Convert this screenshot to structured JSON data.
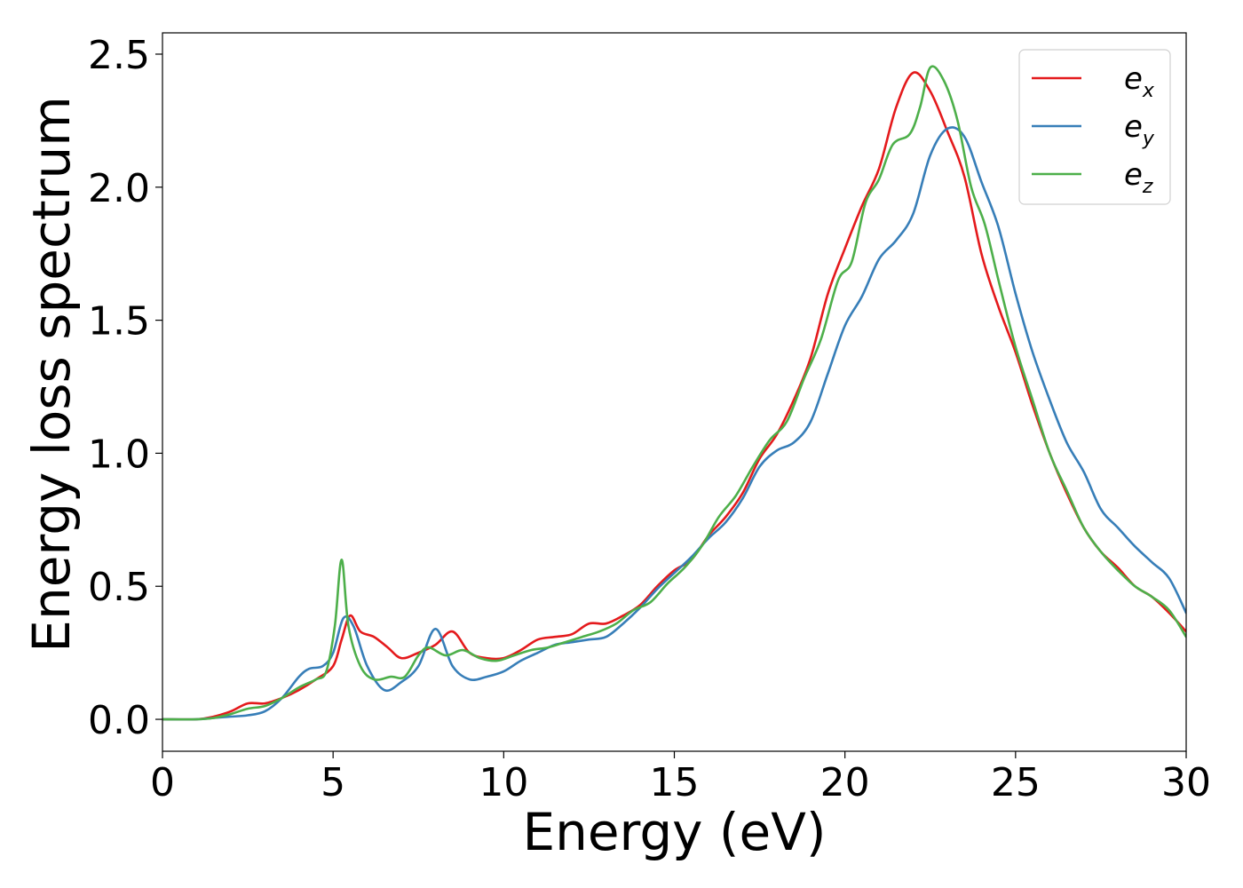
{
  "chart_data": {
    "type": "line",
    "title": "",
    "xlabel": "Energy (eV)",
    "ylabel": "Energy loss spectrum",
    "xlim": [
      0,
      30
    ],
    "ylim": [
      -0.12,
      2.58
    ],
    "xticks": [
      0,
      5,
      10,
      15,
      20,
      25,
      30
    ],
    "xtick_labels": [
      "0",
      "5",
      "10",
      "15",
      "20",
      "25",
      "30"
    ],
    "yticks": [
      0.0,
      0.5,
      1.0,
      1.5,
      2.0,
      2.5
    ],
    "ytick_labels": [
      "0.0",
      "0.5",
      "1.0",
      "1.5",
      "2.0",
      "2.5"
    ],
    "grid": false,
    "legend_position": "top-right",
    "series": [
      {
        "name": "e_x",
        "label_base": "e",
        "label_sub": "x",
        "color": "#e41a1c",
        "points": [
          [
            0,
            0.0
          ],
          [
            1,
            0.0
          ],
          [
            1.5,
            0.01
          ],
          [
            2,
            0.03
          ],
          [
            2.5,
            0.06
          ],
          [
            3,
            0.06
          ],
          [
            3.5,
            0.08
          ],
          [
            4,
            0.11
          ],
          [
            4.5,
            0.15
          ],
          [
            5,
            0.2
          ],
          [
            5.25,
            0.3
          ],
          [
            5.5,
            0.39
          ],
          [
            5.8,
            0.33
          ],
          [
            6.2,
            0.31
          ],
          [
            6.6,
            0.27
          ],
          [
            7,
            0.23
          ],
          [
            7.5,
            0.25
          ],
          [
            8,
            0.28
          ],
          [
            8.5,
            0.33
          ],
          [
            9,
            0.25
          ],
          [
            9.5,
            0.23
          ],
          [
            10,
            0.23
          ],
          [
            10.5,
            0.26
          ],
          [
            11,
            0.3
          ],
          [
            11.5,
            0.31
          ],
          [
            12,
            0.32
          ],
          [
            12.5,
            0.36
          ],
          [
            13,
            0.36
          ],
          [
            13.5,
            0.39
          ],
          [
            14,
            0.43
          ],
          [
            14.5,
            0.5
          ],
          [
            15,
            0.56
          ],
          [
            15.5,
            0.6
          ],
          [
            16,
            0.69
          ],
          [
            16.5,
            0.76
          ],
          [
            17,
            0.85
          ],
          [
            17.5,
            0.98
          ],
          [
            18,
            1.07
          ],
          [
            18.5,
            1.2
          ],
          [
            19,
            1.36
          ],
          [
            19.5,
            1.6
          ],
          [
            20,
            1.77
          ],
          [
            20.5,
            1.93
          ],
          [
            21,
            2.07
          ],
          [
            21.5,
            2.3
          ],
          [
            22,
            2.43
          ],
          [
            22.5,
            2.36
          ],
          [
            23,
            2.21
          ],
          [
            23.5,
            2.04
          ],
          [
            24,
            1.75
          ],
          [
            24.5,
            1.55
          ],
          [
            25,
            1.38
          ],
          [
            25.5,
            1.18
          ],
          [
            26,
            1.0
          ],
          [
            26.5,
            0.85
          ],
          [
            27,
            0.72
          ],
          [
            27.5,
            0.63
          ],
          [
            28,
            0.57
          ],
          [
            28.5,
            0.5
          ],
          [
            29,
            0.46
          ],
          [
            29.5,
            0.4
          ],
          [
            30,
            0.33
          ]
        ]
      },
      {
        "name": "e_y",
        "label_base": "e",
        "label_sub": "y",
        "color": "#377eb8",
        "points": [
          [
            0,
            0.0
          ],
          [
            1,
            0.0
          ],
          [
            1.5,
            0.005
          ],
          [
            2,
            0.01
          ],
          [
            2.5,
            0.015
          ],
          [
            3,
            0.03
          ],
          [
            3.5,
            0.08
          ],
          [
            4,
            0.16
          ],
          [
            4.3,
            0.19
          ],
          [
            4.7,
            0.2
          ],
          [
            5,
            0.25
          ],
          [
            5.3,
            0.38
          ],
          [
            5.6,
            0.35
          ],
          [
            6,
            0.2
          ],
          [
            6.5,
            0.11
          ],
          [
            7,
            0.14
          ],
          [
            7.5,
            0.2
          ],
          [
            8,
            0.34
          ],
          [
            8.5,
            0.2
          ],
          [
            9,
            0.15
          ],
          [
            9.5,
            0.16
          ],
          [
            10,
            0.18
          ],
          [
            10.5,
            0.22
          ],
          [
            11,
            0.25
          ],
          [
            11.5,
            0.28
          ],
          [
            12,
            0.29
          ],
          [
            12.5,
            0.3
          ],
          [
            13,
            0.31
          ],
          [
            13.5,
            0.36
          ],
          [
            14,
            0.42
          ],
          [
            14.5,
            0.49
          ],
          [
            15,
            0.55
          ],
          [
            15.5,
            0.61
          ],
          [
            16,
            0.68
          ],
          [
            16.5,
            0.74
          ],
          [
            17,
            0.83
          ],
          [
            17.5,
            0.95
          ],
          [
            18,
            1.01
          ],
          [
            18.5,
            1.04
          ],
          [
            19,
            1.12
          ],
          [
            19.5,
            1.3
          ],
          [
            20,
            1.48
          ],
          [
            20.5,
            1.59
          ],
          [
            21,
            1.73
          ],
          [
            21.5,
            1.8
          ],
          [
            22,
            1.9
          ],
          [
            22.5,
            2.12
          ],
          [
            23,
            2.22
          ],
          [
            23.5,
            2.19
          ],
          [
            24,
            2.02
          ],
          [
            24.5,
            1.85
          ],
          [
            25,
            1.6
          ],
          [
            25.5,
            1.38
          ],
          [
            26,
            1.2
          ],
          [
            26.5,
            1.04
          ],
          [
            27,
            0.93
          ],
          [
            27.5,
            0.79
          ],
          [
            28,
            0.72
          ],
          [
            28.5,
            0.65
          ],
          [
            29,
            0.59
          ],
          [
            29.5,
            0.53
          ],
          [
            30,
            0.4
          ]
        ]
      },
      {
        "name": "e_z",
        "label_base": "e",
        "label_sub": "z",
        "color": "#4daf4a",
        "points": [
          [
            0,
            0.0
          ],
          [
            1,
            0.0
          ],
          [
            1.5,
            0.005
          ],
          [
            2,
            0.02
          ],
          [
            2.5,
            0.04
          ],
          [
            3,
            0.05
          ],
          [
            3.5,
            0.08
          ],
          [
            4,
            0.12
          ],
          [
            4.5,
            0.15
          ],
          [
            4.8,
            0.18
          ],
          [
            5.05,
            0.35
          ],
          [
            5.25,
            0.6
          ],
          [
            5.45,
            0.35
          ],
          [
            5.8,
            0.2
          ],
          [
            6.2,
            0.15
          ],
          [
            6.7,
            0.16
          ],
          [
            7.1,
            0.16
          ],
          [
            7.5,
            0.24
          ],
          [
            7.8,
            0.27
          ],
          [
            8.3,
            0.24
          ],
          [
            8.8,
            0.26
          ],
          [
            9.3,
            0.23
          ],
          [
            9.8,
            0.22
          ],
          [
            10.3,
            0.24
          ],
          [
            10.8,
            0.26
          ],
          [
            11.3,
            0.27
          ],
          [
            11.8,
            0.29
          ],
          [
            12.3,
            0.31
          ],
          [
            12.8,
            0.33
          ],
          [
            13.3,
            0.36
          ],
          [
            13.8,
            0.41
          ],
          [
            14.3,
            0.44
          ],
          [
            14.8,
            0.51
          ],
          [
            15.3,
            0.57
          ],
          [
            15.8,
            0.65
          ],
          [
            16.3,
            0.76
          ],
          [
            16.8,
            0.84
          ],
          [
            17.3,
            0.95
          ],
          [
            17.8,
            1.05
          ],
          [
            18.3,
            1.12
          ],
          [
            18.8,
            1.28
          ],
          [
            19.3,
            1.43
          ],
          [
            19.8,
            1.65
          ],
          [
            20.2,
            1.72
          ],
          [
            20.6,
            1.94
          ],
          [
            21,
            2.03
          ],
          [
            21.4,
            2.16
          ],
          [
            21.9,
            2.2
          ],
          [
            22.2,
            2.3
          ],
          [
            22.5,
            2.45
          ],
          [
            22.9,
            2.4
          ],
          [
            23.3,
            2.25
          ],
          [
            23.7,
            2.0
          ],
          [
            24.1,
            1.86
          ],
          [
            24.5,
            1.65
          ],
          [
            25,
            1.4
          ],
          [
            25.5,
            1.2
          ],
          [
            26,
            1.0
          ],
          [
            26.5,
            0.86
          ],
          [
            27,
            0.72
          ],
          [
            27.5,
            0.63
          ],
          [
            28,
            0.56
          ],
          [
            28.5,
            0.5
          ],
          [
            29,
            0.46
          ],
          [
            29.5,
            0.41
          ],
          [
            30,
            0.31
          ]
        ]
      }
    ]
  }
}
